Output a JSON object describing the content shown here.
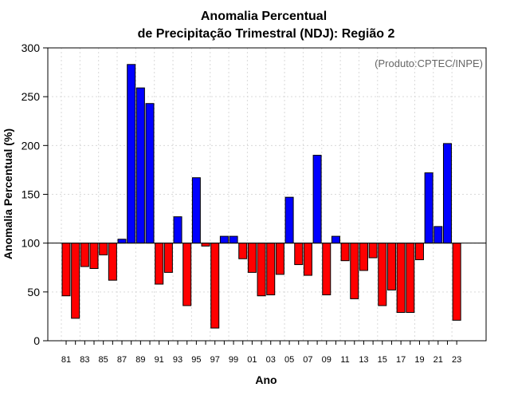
{
  "chart_data": {
    "type": "bar",
    "title_line1": "Anomalia Percentual",
    "title_line2": "de Precipitação Trimestral (NDJ): Região 2",
    "xlabel": "Ano",
    "ylabel": "Anomalia Percentual (%)",
    "annotation": "(Produto:CPTEC/INPE)",
    "baseline": 100,
    "ylim": [
      0,
      300
    ],
    "yticks": [
      "0",
      "50",
      "100",
      "150",
      "200",
      "250",
      "300"
    ],
    "ytick_values": [
      0,
      50,
      100,
      150,
      200,
      250,
      300
    ],
    "grid": true,
    "categories": [
      "81",
      "82",
      "83",
      "84",
      "85",
      "86",
      "87",
      "88",
      "89",
      "90",
      "91",
      "92",
      "93",
      "94",
      "95",
      "96",
      "97",
      "98",
      "99",
      "00",
      "01",
      "02",
      "03",
      "04",
      "05",
      "06",
      "07",
      "08",
      "09",
      "10",
      "11",
      "12",
      "13",
      "14",
      "15",
      "16",
      "17",
      "18",
      "19",
      "20",
      "21",
      "22",
      "23"
    ],
    "xtick_labels_shown": [
      "81",
      "83",
      "85",
      "87",
      "89",
      "91",
      "93",
      "95",
      "97",
      "99",
      "01",
      "03",
      "05",
      "07",
      "09",
      "11",
      "13",
      "15",
      "17",
      "19",
      "21",
      "23"
    ],
    "values": [
      46,
      23,
      76,
      74,
      88,
      62,
      104,
      283,
      259,
      243,
      58,
      70,
      127,
      36,
      167,
      97,
      13,
      107,
      107,
      84,
      70,
      46,
      47,
      68,
      147,
      78,
      67,
      190,
      47,
      107,
      82,
      43,
      72,
      85,
      36,
      52,
      29,
      29,
      83,
      172,
      117,
      202,
      21
    ],
    "colors": {
      "above": "#0000ff",
      "below": "#ff0000",
      "outline": "#000000"
    }
  }
}
